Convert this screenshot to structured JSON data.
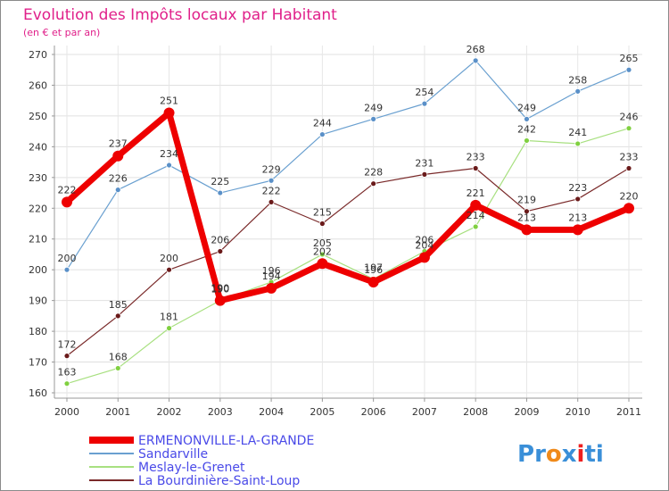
{
  "chart_data": {
    "type": "line",
    "title": "Evolution des Impôts locaux par Habitant",
    "subtitle": "(en € et par an)",
    "categories": [
      "2000",
      "2001",
      "2002",
      "2003",
      "2004",
      "2005",
      "2006",
      "2007",
      "2008",
      "2009",
      "2010",
      "2011"
    ],
    "ylim": [
      160,
      270
    ],
    "yticks": [
      160,
      170,
      180,
      190,
      200,
      210,
      220,
      230,
      240,
      250,
      260,
      270
    ],
    "series": [
      {
        "name": "Sandarville",
        "color": "#6aa0d0",
        "marker": "#5a90c8",
        "values": [
          200,
          226,
          234,
          225,
          229,
          244,
          249,
          254,
          268,
          249,
          258,
          265
        ]
      },
      {
        "name": "Meslay-le-Grenet",
        "color": "#a8e080",
        "marker": "#80d040",
        "values": [
          163,
          168,
          181,
          190,
          196,
          205,
          197,
          206,
          214,
          242,
          241,
          246
        ]
      },
      {
        "name": "La Bourdinière-Saint-Loup",
        "color": "#7a2a2a",
        "marker": "#6a1a1a",
        "values": [
          172,
          185,
          200,
          206,
          222,
          215,
          228,
          231,
          233,
          219,
          223,
          233
        ]
      },
      {
        "name": "ERMENONVILLE-LA-GRANDE",
        "color": "#ee0000",
        "marker": "#ee0000",
        "values": [
          222,
          237,
          251,
          190,
          194,
          202,
          196,
          204,
          221,
          213,
          213,
          220
        ]
      }
    ],
    "legend": [
      "ERMENONVILLE-LA-GRANDE",
      "Sandarville",
      "Meslay-le-Grenet",
      "La Bourdinière-Saint-Loup"
    ]
  },
  "logo": {
    "text": "Proxiti",
    "letters": [
      "P",
      "r",
      "o",
      "x",
      "i",
      "t",
      "i"
    ],
    "colors": [
      "#3a8fd8",
      "#3a8fd8",
      "#f08a1a",
      "#3a8fd8",
      "#ee2020",
      "#3a8fd8",
      "#3a8fd8"
    ]
  }
}
